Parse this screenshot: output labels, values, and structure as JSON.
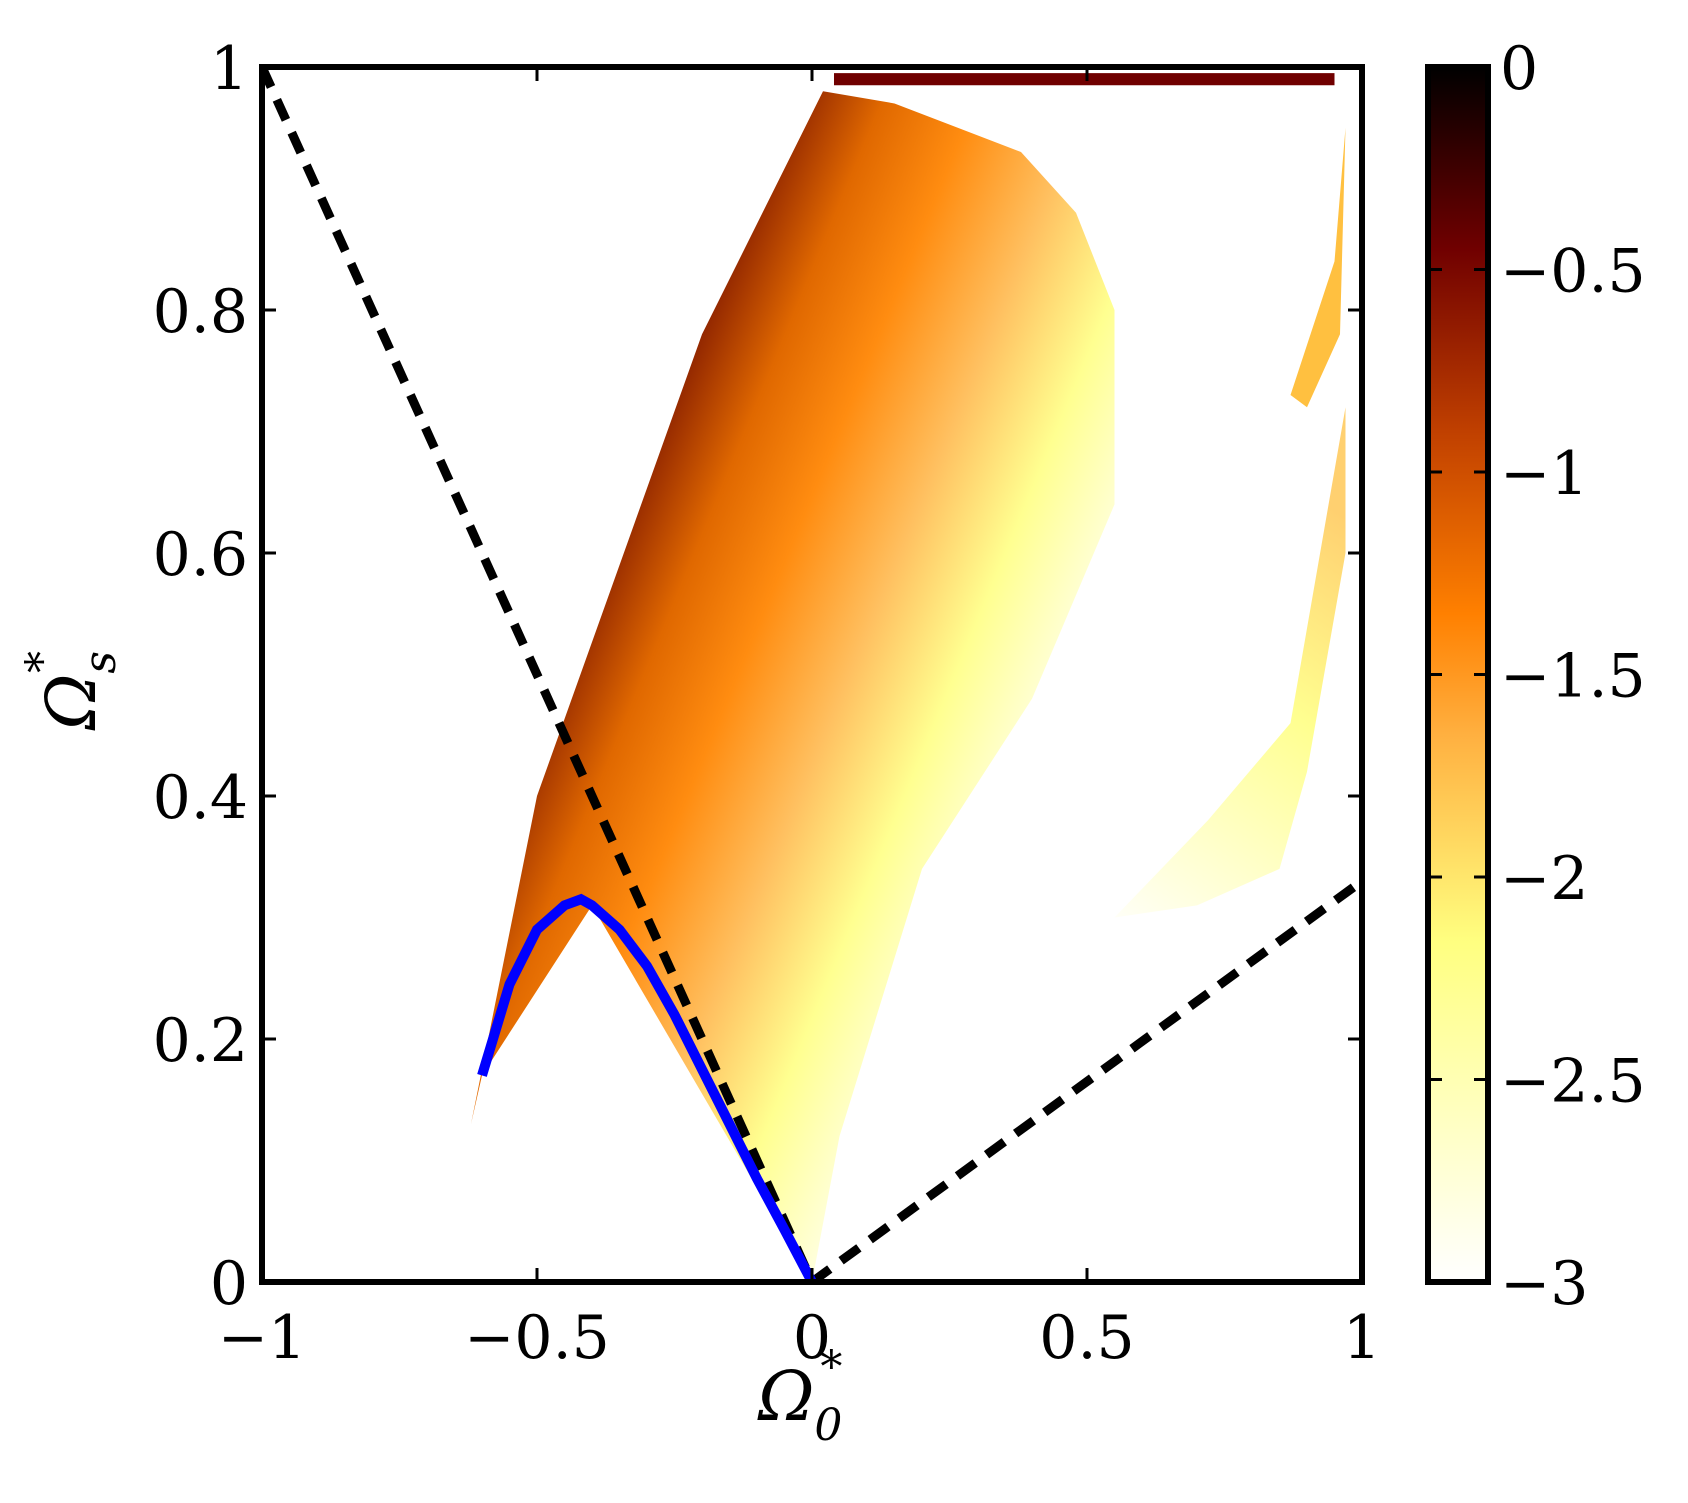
{
  "chart_data": {
    "type": "heatmap",
    "xlabel": "Ω",
    "xlabel_sub": "0",
    "xlabel_sup": "*",
    "ylabel": "Ω",
    "ylabel_sub": "s",
    "ylabel_sup": "*",
    "xlim": [
      -1,
      1
    ],
    "ylim": [
      0,
      1
    ],
    "x_ticks": [
      -1,
      -0.5,
      0,
      0.5,
      1
    ],
    "x_tick_labels": [
      "−1",
      "−0.5",
      "0",
      "0.5",
      "1"
    ],
    "y_ticks": [
      0,
      0.2,
      0.4,
      0.6,
      0.8,
      1
    ],
    "y_tick_labels": [
      "0",
      "0.2",
      "0.4",
      "0.6",
      "0.8",
      "1"
    ],
    "grid": false,
    "colorbar": {
      "range": [
        -3,
        0
      ],
      "ticks": [
        0,
        -0.5,
        -1,
        -1.5,
        -2,
        -2.5,
        -3
      ],
      "tick_labels": [
        "0",
        "−0.5",
        "−1",
        "−1.5",
        "−2",
        "−2.5",
        "−3"
      ],
      "colormap": [
        "#ffffff",
        "#ffffa0",
        "#ffc040",
        "#ff8000",
        "#c04000",
        "#700000",
        "#000000"
      ]
    },
    "regions": [
      {
        "name": "main-region",
        "polygon": [
          [
            -0.62,
            0.13
          ],
          [
            -0.5,
            0.4
          ],
          [
            -0.2,
            0.78
          ],
          [
            0.02,
            0.98
          ],
          [
            0.15,
            0.97
          ],
          [
            0.38,
            0.93
          ],
          [
            0.48,
            0.88
          ],
          [
            0.55,
            0.8
          ],
          [
            0.55,
            0.64
          ],
          [
            0.4,
            0.48
          ],
          [
            0.2,
            0.34
          ],
          [
            0.05,
            0.12
          ],
          [
            0.0,
            0.0
          ],
          [
            -0.4,
            0.31
          ],
          [
            -0.6,
            0.17
          ]
        ],
        "left_value": -0.1,
        "right_value": -2.8
      },
      {
        "name": "right-region",
        "polygon": [
          [
            0.55,
            0.3
          ],
          [
            0.72,
            0.38
          ],
          [
            0.87,
            0.46
          ],
          [
            0.97,
            0.72
          ],
          [
            0.97,
            0.6
          ],
          [
            0.9,
            0.42
          ],
          [
            0.85,
            0.34
          ],
          [
            0.7,
            0.31
          ]
        ],
        "value": -2.6
      },
      {
        "name": "top-right-strip",
        "polygon": [
          [
            0.87,
            0.73
          ],
          [
            0.95,
            0.84
          ],
          [
            0.97,
            0.95
          ],
          [
            0.96,
            0.78
          ],
          [
            0.9,
            0.72
          ]
        ],
        "value": -1.9
      },
      {
        "name": "top-band",
        "polygon": [
          [
            0.04,
            0.995
          ],
          [
            0.95,
            0.995
          ],
          [
            0.95,
            0.985
          ],
          [
            0.04,
            0.985
          ]
        ],
        "value": -0.5
      }
    ],
    "lines": [
      {
        "name": "dashed-left",
        "style": "dashed",
        "color": "#000000",
        "x": [
          -1,
          0
        ],
        "y": [
          1,
          0
        ]
      },
      {
        "name": "dashed-right",
        "style": "dashed",
        "color": "#000000",
        "x": [
          0,
          1
        ],
        "y": [
          0,
          0.33
        ]
      },
      {
        "name": "blue-curve",
        "style": "solid",
        "color": "#0000ff",
        "x": [
          -0.6,
          -0.55,
          -0.5,
          -0.45,
          -0.42,
          -0.4,
          -0.35,
          -0.3,
          -0.25,
          -0.2,
          -0.15,
          -0.1,
          -0.05,
          0.0
        ],
        "y": [
          0.17,
          0.245,
          0.29,
          0.31,
          0.315,
          0.31,
          0.29,
          0.26,
          0.22,
          0.175,
          0.13,
          0.085,
          0.043,
          0.0
        ]
      }
    ]
  }
}
